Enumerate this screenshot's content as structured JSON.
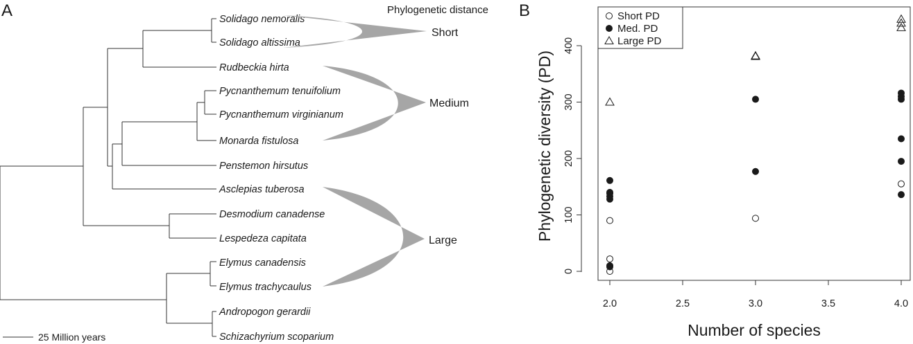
{
  "panel_a": {
    "label": "A",
    "wedge_heading": "Phylogenetic distance",
    "wedge_labels": [
      "Short",
      "Medium",
      "Large"
    ],
    "species": [
      "Solidago nemoralis",
      "Solidago altissima",
      "Rudbeckia hirta",
      "Pycnanthemum tenuifolium",
      "Pycnanthemum virginianum",
      "Monarda fistulosa",
      "Penstemon hirsutus",
      "Asclepias tuberosa",
      "Desmodium canadense",
      "Lespedeza capitata",
      "Elymus canadensis",
      "Elymus trachycaulus",
      "Andropogon gerardii",
      "Schizachyrium scoparium"
    ],
    "scale_bar_label": "25 Million years"
  },
  "panel_b": {
    "label": "B"
  },
  "colors": {
    "wedge": "#a6a6a6",
    "line": "#333333",
    "marker": "#1a1a1a"
  },
  "chart_data": {
    "type": "scatter",
    "title": "",
    "xlabel": "Number of species",
    "ylabel": "Phylogenetic diversity (PD)",
    "xlim": [
      1.9,
      4.1
    ],
    "ylim": [
      -20,
      470
    ],
    "xticks": [
      "2.0",
      "2.5",
      "3.0",
      "3.5",
      "4.0"
    ],
    "yticks": [
      "0",
      "100",
      "200",
      "300",
      "400"
    ],
    "legend_position": "top-left",
    "series": [
      {
        "name": "Short PD",
        "marker": "open-circle",
        "x": [
          2,
          2,
          2,
          3,
          4
        ],
        "y": [
          0,
          22,
          90,
          94,
          155
        ]
      },
      {
        "name": "Med. PD",
        "marker": "filled-circle",
        "x": [
          2,
          2,
          2,
          2,
          2,
          2,
          2,
          3,
          3,
          4,
          4,
          4,
          4,
          4,
          4
        ],
        "y": [
          8,
          10,
          128,
          133,
          138,
          140,
          161,
          177,
          305,
          136,
          195,
          235,
          305,
          310,
          316
        ]
      },
      {
        "name": "Large PD",
        "marker": "open-triangle",
        "x": [
          2,
          3,
          3,
          4,
          4,
          4
        ],
        "y": [
          300,
          381,
          382,
          432,
          440,
          447
        ]
      }
    ]
  }
}
